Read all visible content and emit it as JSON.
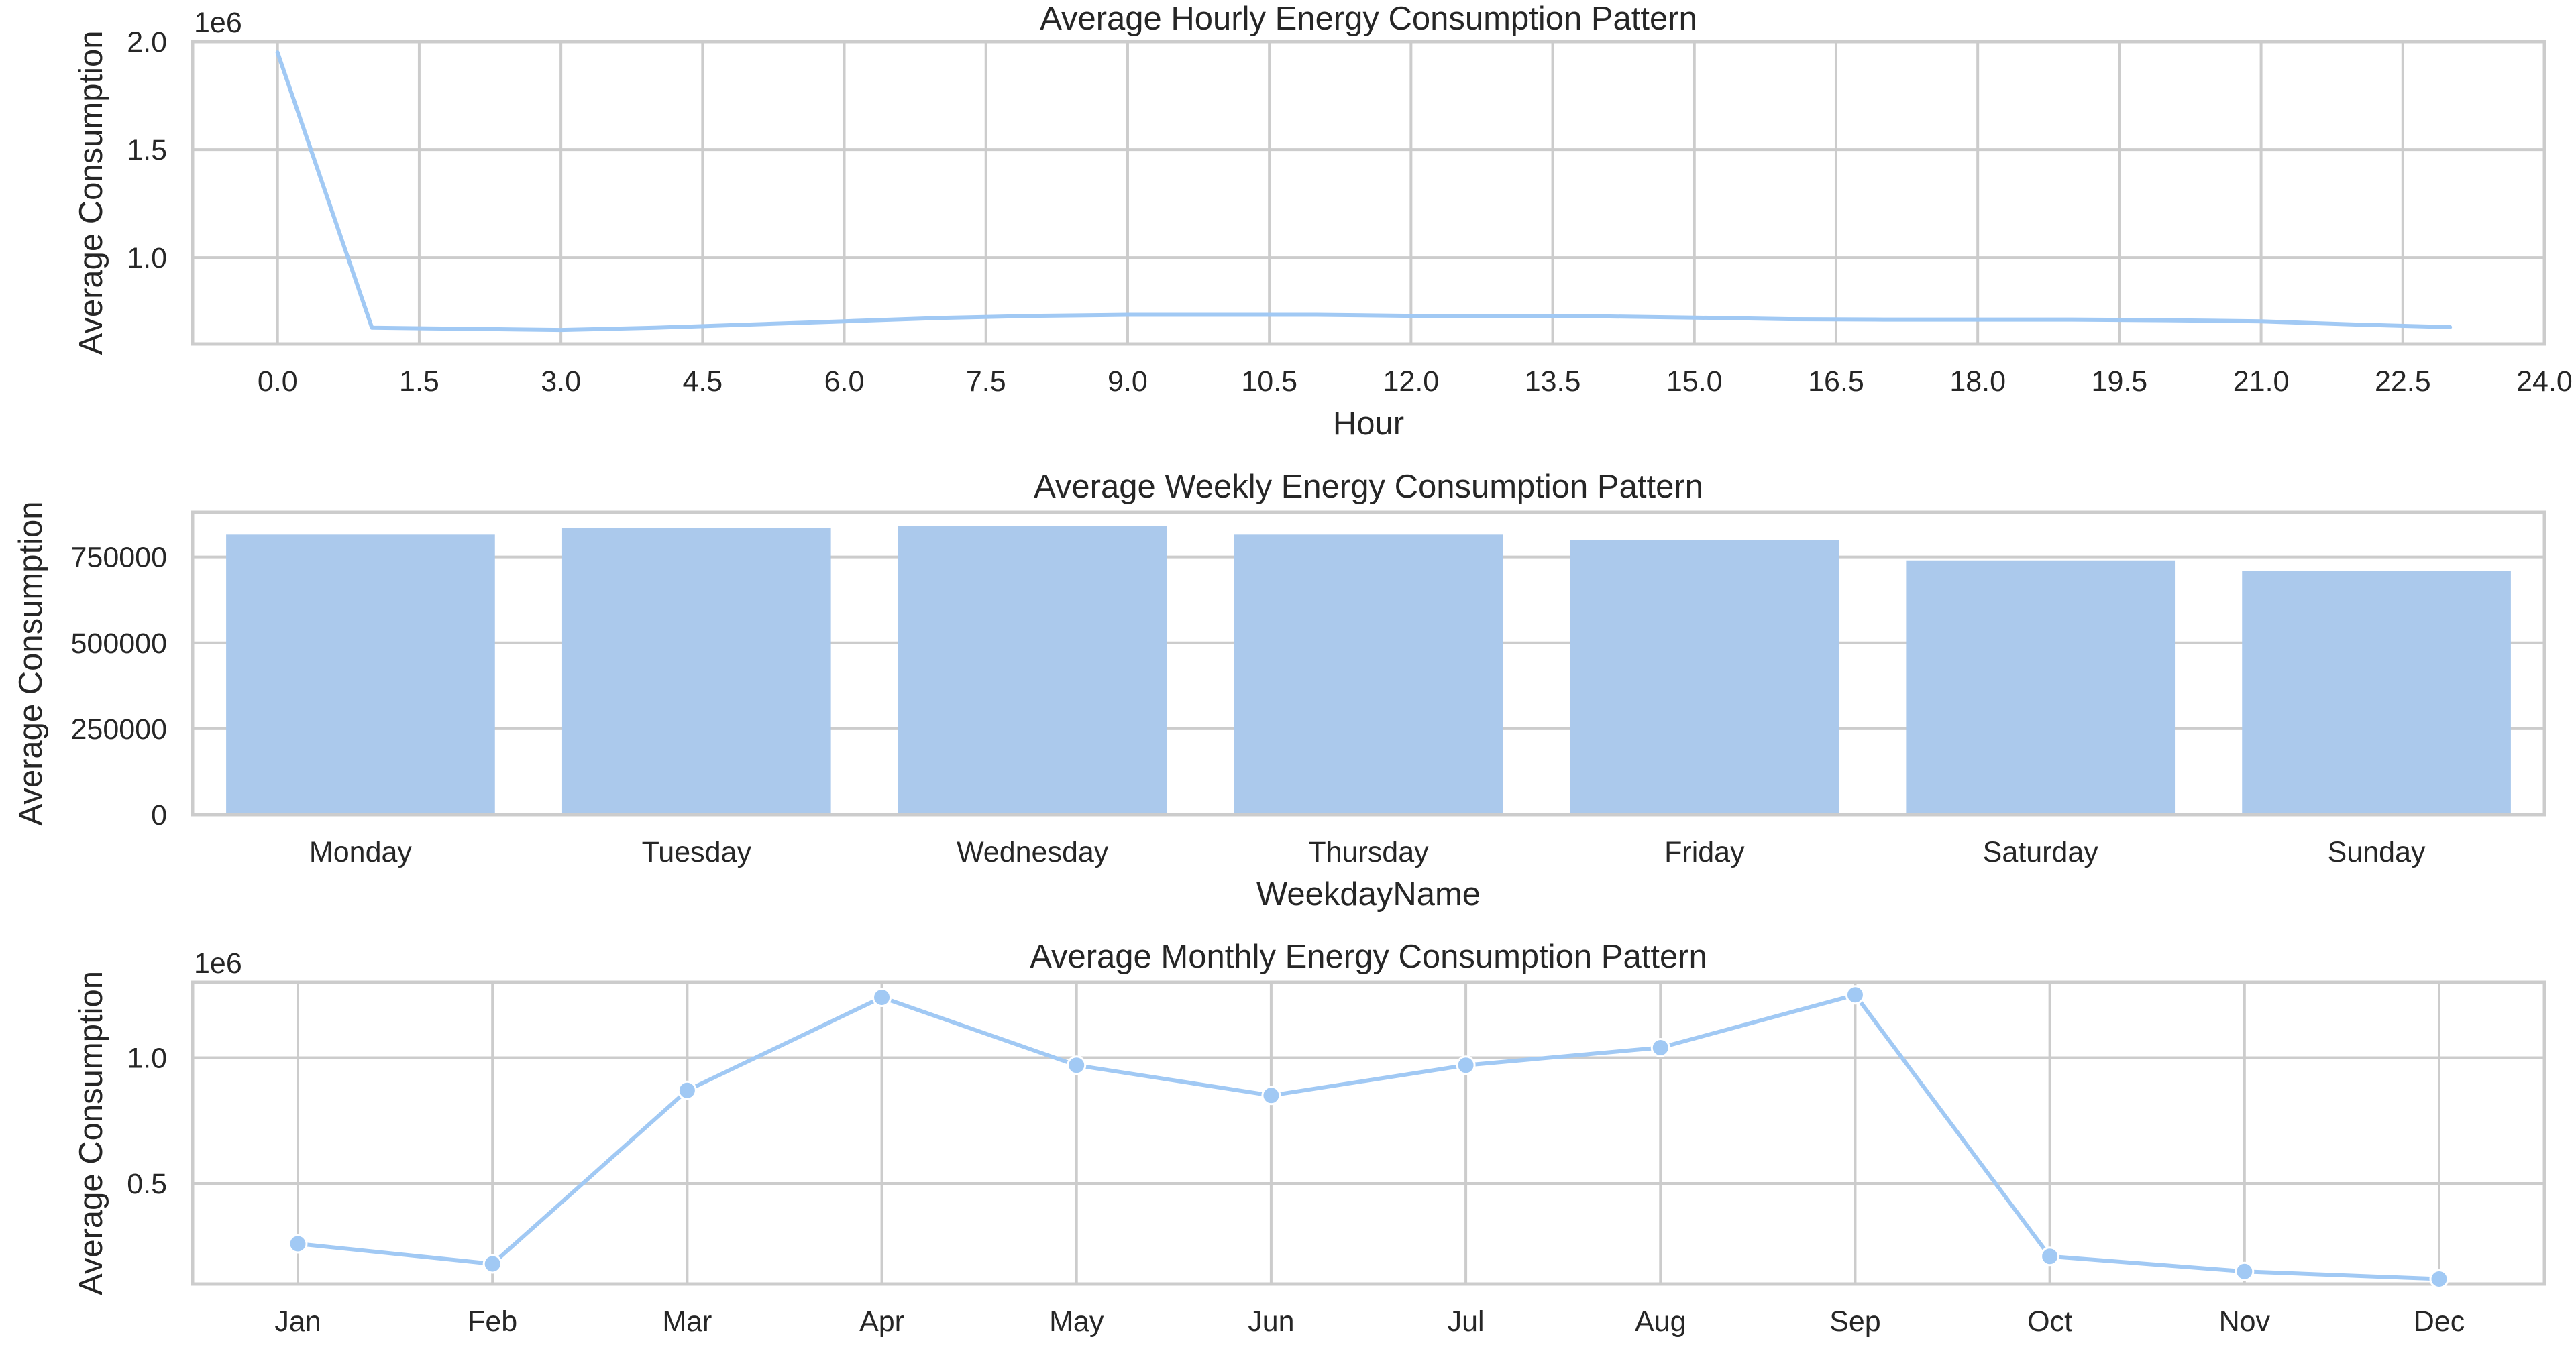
{
  "chart_data": [
    {
      "type": "line",
      "title": "Average Hourly Energy Consumption Pattern",
      "xlabel": "Hour",
      "ylabel": "Average Consumption",
      "y_offset_label": "1e6",
      "xlim": [
        -0.9,
        24.0
      ],
      "ylim": [
        0.6,
        2.0
      ],
      "xticks": [
        "0.0",
        "1.5",
        "3.0",
        "4.5",
        "6.0",
        "7.5",
        "9.0",
        "10.5",
        "12.0",
        "13.5",
        "15.0",
        "16.5",
        "18.0",
        "19.5",
        "21.0",
        "22.5",
        "24.0"
      ],
      "yticks": [
        "1.0",
        "1.5",
        "2.0"
      ],
      "grid": true,
      "color": "#a1c9f4",
      "markers": false,
      "x": [
        0,
        1,
        2,
        3,
        4,
        5,
        6,
        7,
        8,
        9,
        10,
        11,
        12,
        13,
        14,
        15,
        16,
        17,
        18,
        19,
        20,
        21,
        22,
        23
      ],
      "values": [
        1.95,
        0.675,
        0.67,
        0.665,
        0.675,
        0.69,
        0.705,
        0.72,
        0.73,
        0.735,
        0.735,
        0.735,
        0.73,
        0.73,
        0.728,
        0.722,
        0.715,
        0.713,
        0.713,
        0.713,
        0.71,
        0.705,
        0.69,
        0.678
      ]
    },
    {
      "type": "bar",
      "title": "Average Weekly Energy Consumption Pattern",
      "xlabel": "WeekdayName",
      "ylabel": "Average Consumption",
      "ylim": [
        0,
        880000
      ],
      "yticks": [
        "0",
        "250000",
        "500000",
        "750000"
      ],
      "grid": true,
      "color": "#abc9ec",
      "categories": [
        "Monday",
        "Tuesday",
        "Wednesday",
        "Thursday",
        "Friday",
        "Saturday",
        "Sunday"
      ],
      "values": [
        815000,
        835000,
        840000,
        815000,
        800000,
        740000,
        710000
      ]
    },
    {
      "type": "line",
      "title": "Average Monthly Energy Consumption Pattern",
      "xlabel": "Month",
      "ylabel": "Average Consumption",
      "y_offset_label": "1e6",
      "ylim": [
        0.1,
        1.3
      ],
      "yticks": [
        "0.5",
        "1.0"
      ],
      "grid": true,
      "color": "#a1c9f4",
      "markers": true,
      "categories": [
        "Jan",
        "Feb",
        "Mar",
        "Apr",
        "May",
        "Jun",
        "Jul",
        "Aug",
        "Sep",
        "Oct",
        "Nov",
        "Dec"
      ],
      "values": [
        0.26,
        0.18,
        0.87,
        1.24,
        0.97,
        0.85,
        0.97,
        1.04,
        1.25,
        0.21,
        0.15,
        0.12
      ]
    }
  ]
}
